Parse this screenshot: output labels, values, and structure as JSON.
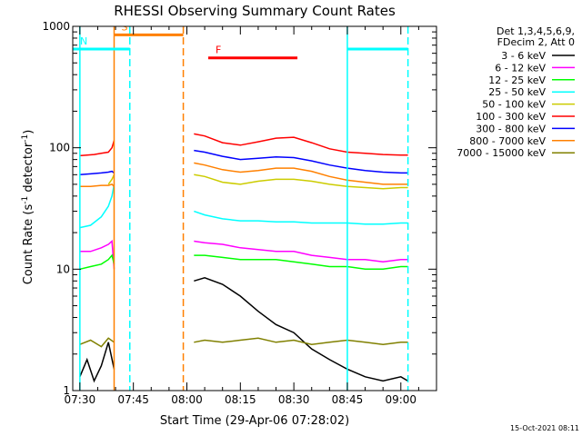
{
  "chart_data": {
    "type": "line",
    "title": "RHESSI Observing Summary Count Rates",
    "xlabel": "Start Time (29-Apr-06 07:28:02)",
    "ylabel": "Count Rate (s⁻¹ detector⁻¹)",
    "ylabel_main": "Count Rate (s",
    "ylabel_sup1": "-1",
    "ylabel_mid": " detector",
    "ylabel_sup2": "-1",
    "ylabel_end": ")",
    "y_scale": "log",
    "ylim": [
      1,
      1000
    ],
    "xlim": [
      "07:28",
      "09:10"
    ],
    "x_ticks": [
      "07:30",
      "07:45",
      "08:00",
      "08:15",
      "08:30",
      "08:45",
      "09:00"
    ],
    "y_ticks": [
      "1",
      "10",
      "100",
      "1000"
    ],
    "footer_date": "15-Oct-2021 08:11",
    "legend_header": [
      "Det 1,3,4,5,6,9,",
      "FDecim 2, Att 0"
    ],
    "series": [
      {
        "name": "3 - 6 keV",
        "color": "#000000",
        "segments": [
          {
            "x": [
              "07:30",
              "07:32",
              "07:34",
              "07:36",
              "07:38",
              "07:39.6"
            ],
            "y": [
              1.3,
              1.8,
              1.2,
              1.6,
              2.5,
              1.5
            ]
          },
          {
            "x": [
              "08:02",
              "08:05",
              "08:10",
              "08:15",
              "08:20",
              "08:25",
              "08:30",
              "08:35",
              "08:40",
              "08:45",
              "08:50",
              "08:55",
              "09:00",
              "09:02"
            ],
            "y": [
              8,
              8.5,
              7.5,
              6,
              4.5,
              3.5,
              3,
              2.2,
              1.8,
              1.5,
              1.3,
              1.2,
              1.3,
              1.2
            ]
          }
        ]
      },
      {
        "name": "6 - 12 keV",
        "color": "#ff00ff",
        "segments": [
          {
            "x": [
              "07:30",
              "07:33",
              "07:36",
              "07:38",
              "07:39",
              "07:39.6"
            ],
            "y": [
              14,
              14,
              15,
              16,
              17,
              10
            ]
          },
          {
            "x": [
              "08:02",
              "08:05",
              "08:10",
              "08:15",
              "08:20",
              "08:25",
              "08:30",
              "08:35",
              "08:40",
              "08:45",
              "08:50",
              "08:55",
              "09:00",
              "09:02"
            ],
            "y": [
              17,
              16.5,
              16,
              15,
              14.5,
              14,
              14,
              13,
              12.5,
              12,
              12,
              11.5,
              12,
              12
            ]
          }
        ]
      },
      {
        "name": "12 - 25 keV",
        "color": "#00ff00",
        "segments": [
          {
            "x": [
              "07:30",
              "07:33",
              "07:36",
              "07:38",
              "07:39",
              "07:39.6"
            ],
            "y": [
              10,
              10.5,
              11,
              12,
              13,
              11
            ]
          },
          {
            "x": [
              "08:02",
              "08:05",
              "08:10",
              "08:15",
              "08:20",
              "08:25",
              "08:30",
              "08:35",
              "08:40",
              "08:45",
              "08:50",
              "08:55",
              "09:00",
              "09:02"
            ],
            "y": [
              13,
              13,
              12.5,
              12,
              12,
              12,
              11.5,
              11,
              10.5,
              10.5,
              10,
              10,
              10.5,
              10.5
            ]
          }
        ]
      },
      {
        "name": "25 - 50 keV",
        "color": "#00ffff",
        "segments": [
          {
            "x": [
              "07:30",
              "07:33",
              "07:36",
              "07:38",
              "07:39",
              "07:39.6"
            ],
            "y": [
              22,
              23,
              27,
              33,
              40,
              50
            ]
          },
          {
            "x": [
              "08:02",
              "08:05",
              "08:10",
              "08:15",
              "08:20",
              "08:25",
              "08:30",
              "08:35",
              "08:40",
              "08:45",
              "08:50",
              "08:55",
              "09:00",
              "09:02"
            ],
            "y": [
              30,
              28,
              26,
              25,
              25,
              24.5,
              24.5,
              24,
              24,
              24,
              23.5,
              23.5,
              24,
              24
            ]
          }
        ]
      },
      {
        "name": "50 - 100 keV",
        "color": "#cccc00",
        "segments": [
          {
            "x": [
              "07:38",
              "07:39",
              "07:39.6"
            ],
            "y": [
              50,
              55,
              60
            ]
          },
          {
            "x": [
              "08:02",
              "08:05",
              "08:10",
              "08:15",
              "08:20",
              "08:25",
              "08:30",
              "08:35",
              "08:40",
              "08:45",
              "08:50",
              "08:55",
              "09:00",
              "09:02"
            ],
            "y": [
              60,
              58,
              52,
              50,
              53,
              55,
              55,
              53,
              50,
              48,
              47,
              46,
              47,
              47
            ]
          }
        ]
      },
      {
        "name": "100 - 300 keV",
        "color": "#ff0000",
        "segments": [
          {
            "x": [
              "07:30",
              "07:32",
              "07:34",
              "07:36",
              "07:38",
              "07:39",
              "07:39.6"
            ],
            "y": [
              86,
              87,
              88,
              90,
              92,
              100,
              115
            ]
          },
          {
            "x": [
              "08:02",
              "08:05",
              "08:10",
              "08:15",
              "08:20",
              "08:25",
              "08:30",
              "08:35",
              "08:40",
              "08:45",
              "08:50",
              "08:55",
              "09:00",
              "09:02"
            ],
            "y": [
              130,
              125,
              110,
              105,
              112,
              120,
              122,
              110,
              98,
              92,
              90,
              88,
              87,
              87
            ]
          }
        ]
      },
      {
        "name": "300 - 800 keV",
        "color": "#0000ff",
        "segments": [
          {
            "x": [
              "07:30",
              "07:33",
              "07:36",
              "07:38",
              "07:39",
              "07:39.6"
            ],
            "y": [
              60,
              61,
              62,
              63,
              64,
              62
            ]
          },
          {
            "x": [
              "08:02",
              "08:05",
              "08:10",
              "08:15",
              "08:20",
              "08:25",
              "08:30",
              "08:35",
              "08:40",
              "08:45",
              "08:50",
              "08:55",
              "09:00",
              "09:02"
            ],
            "y": [
              95,
              92,
              85,
              80,
              82,
              84,
              83,
              78,
              72,
              68,
              65,
              63,
              62,
              62
            ]
          }
        ]
      },
      {
        "name": "800 - 7000 keV",
        "color": "#ff8000",
        "segments": [
          {
            "x": [
              "07:30",
              "07:33",
              "07:36",
              "07:38",
              "07:39",
              "07:39.6"
            ],
            "y": [
              48,
              48,
              49,
              49,
              50,
              48
            ]
          },
          {
            "x": [
              "08:02",
              "08:05",
              "08:10",
              "08:15",
              "08:20",
              "08:25",
              "08:30",
              "08:35",
              "08:40",
              "08:45",
              "08:50",
              "08:55",
              "09:00",
              "09:02"
            ],
            "y": [
              75,
              72,
              66,
              63,
              65,
              68,
              68,
              64,
              58,
              54,
              52,
              50,
              50,
              50
            ]
          }
        ]
      },
      {
        "name": "7000 - 15000 keV",
        "color": "#808000",
        "segments": [
          {
            "x": [
              "07:30",
              "07:33",
              "07:36",
              "07:38",
              "07:39.6"
            ],
            "y": [
              2.4,
              2.6,
              2.3,
              2.7,
              2.5
            ]
          },
          {
            "x": [
              "08:02",
              "08:05",
              "08:10",
              "08:15",
              "08:20",
              "08:25",
              "08:30",
              "08:35",
              "08:40",
              "08:45",
              "08:50",
              "08:55",
              "09:00",
              "09:02"
            ],
            "y": [
              2.5,
              2.6,
              2.5,
              2.6,
              2.7,
              2.5,
              2.6,
              2.4,
              2.5,
              2.6,
              2.5,
              2.4,
              2.5,
              2.5
            ]
          }
        ]
      }
    ],
    "markers": {
      "solid_lines": [
        {
          "x": "07:39.6",
          "color": "#ff8000"
        },
        {
          "x": "07:30",
          "color": "#00ffff"
        },
        {
          "x": "08:45",
          "color": "#00ffff"
        }
      ],
      "dashed_lines": [
        {
          "x": "07:44",
          "color": "#00ffff"
        },
        {
          "x": "07:59",
          "color": "#ff8000"
        },
        {
          "x": "09:02",
          "color": "#00ffff"
        }
      ],
      "bars": [
        {
          "label": "S",
          "x_start": "07:39.6",
          "x_end": "07:59",
          "y": 850,
          "color": "#ff8000"
        },
        {
          "label": "N",
          "x_start": "07:28",
          "x_end": "07:44",
          "y": 650,
          "color": "#00ffff"
        },
        {
          "label": "F",
          "x_start": "08:06",
          "x_end": "08:31",
          "y": 550,
          "color": "#ff0000"
        },
        {
          "label": "",
          "x_start": "08:45",
          "x_end": "09:02",
          "y": 650,
          "color": "#00ffff"
        }
      ]
    }
  }
}
